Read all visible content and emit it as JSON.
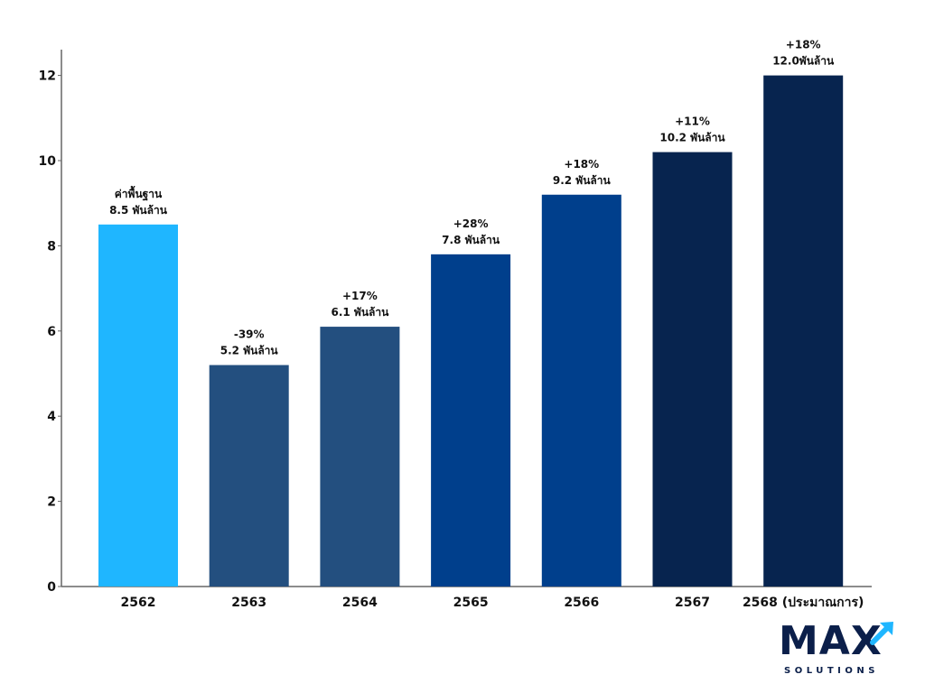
{
  "chart_data": {
    "type": "bar",
    "categories": [
      "2562",
      "2563",
      "2564",
      "2565",
      "2566",
      "2567",
      "2568 (ประมาณการ)"
    ],
    "values": [
      8.5,
      5.2,
      6.1,
      7.8,
      9.2,
      10.2,
      12.0
    ],
    "annotations": [
      {
        "top": "ค่าพื้นฐาน",
        "bottom": "8.5 พันล้าน"
      },
      {
        "top": "-39%",
        "bottom": "5.2 พันล้าน"
      },
      {
        "top": "+17%",
        "bottom": "6.1 พันล้าน"
      },
      {
        "top": "+28%",
        "bottom": "7.8 พันล้าน"
      },
      {
        "top": "+18%",
        "bottom": "9.2 พันล้าน"
      },
      {
        "top": "+11%",
        "bottom": "10.2 พันล้าน"
      },
      {
        "top": "+18%",
        "bottom": "12.0พันล้าน"
      }
    ],
    "bar_colors": [
      "#1fb6ff",
      "#234f7f",
      "#234f7f",
      "#003f8c",
      "#003f8c",
      "#07244f",
      "#07244f"
    ],
    "negative_color": "#e8383d",
    "yticks": [
      0,
      2,
      4,
      6,
      8,
      10,
      12
    ],
    "ylim": [
      0,
      12.6
    ],
    "xlabel": "",
    "ylabel": "",
    "title": "",
    "grid": false,
    "legend": false
  },
  "logo": {
    "wordmark": "MAX",
    "subtitle": "SOLUTIONS",
    "color": "#0b1f4a",
    "accent": "#1fb6ff"
  }
}
